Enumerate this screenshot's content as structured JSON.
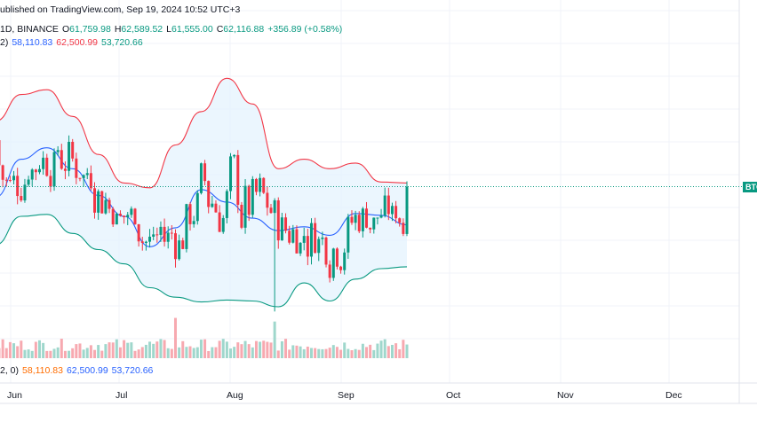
{
  "header": {
    "published": "ublished on TradingView.com, Sep 19, 2024 10:52 UTC+3",
    "symbol_line": "1D, BINANCE",
    "open_label": "O",
    "open": "61,759.98",
    "high_label": "H",
    "high": "62,589.52",
    "low_label": "L",
    "low": "61,555.00",
    "close_label": "C",
    "close": "62,116.88",
    "change": "+356.89 (+0.58%)",
    "bb_prefix": "2)",
    "bb_basis": "58,110.83",
    "bb_upper": "62,500.99",
    "bb_lower": "53,720.66",
    "bb2_prefix": "2, 0)",
    "bb2_basis": "58,110.83",
    "bb2_upper": "62,500.99",
    "bb2_lower": "53,720.66"
  },
  "price_tag": "BTC",
  "colors": {
    "up": "#089981",
    "down": "#f23645",
    "basis": "#2962ff",
    "upper": "#f23645",
    "lower": "#089981",
    "fill": "#e3f2fd"
  },
  "chart_data": {
    "type": "candlestick",
    "x_labels": [
      "Jun",
      "Jul",
      "Aug",
      "Sep",
      "Oct",
      "Nov",
      "Dec"
    ],
    "last_close": 62116.88,
    "bands": {
      "basis": [
        61000,
        65000,
        66200,
        64000,
        61200,
        59000,
        55800,
        57800,
        61800,
        60500,
        58800,
        57500,
        57900,
        57000,
        59300,
        59100,
        58100
      ],
      "upper": [
        69000,
        71800,
        72300,
        69500,
        65500,
        62500,
        62000,
        66500,
        70000,
        73500,
        70800,
        64000,
        65000,
        64000,
        64600,
        62600,
        62500
      ],
      "lower": [
        56000,
        59000,
        59200,
        57200,
        55500,
        54000,
        51500,
        50500,
        50000,
        50200,
        50100,
        49500,
        52000,
        50100,
        52400,
        53500,
        53700
      ]
    },
    "volume_note": "daily volume bars shown beneath price"
  }
}
